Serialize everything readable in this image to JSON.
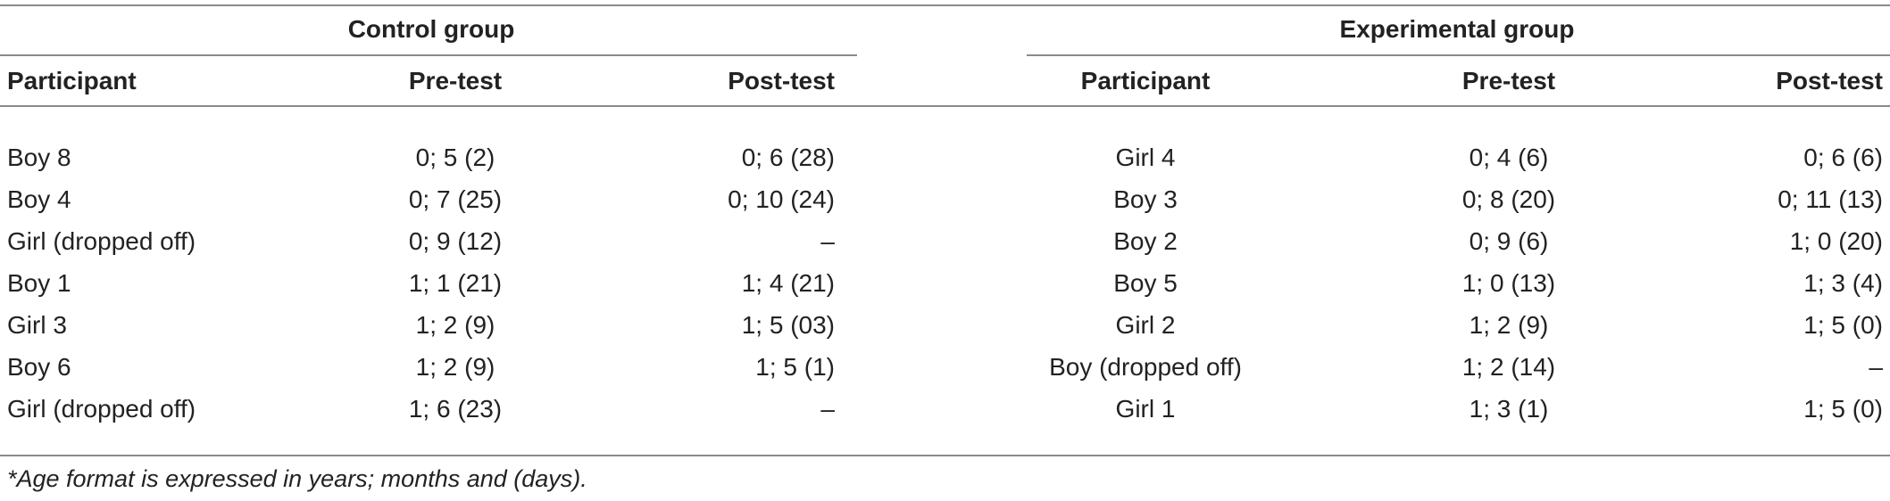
{
  "table": {
    "group_headers": {
      "control": "Control group",
      "experimental": "Experimental group"
    },
    "column_headers": {
      "control": [
        "Participant",
        "Pre-test",
        "Post-test"
      ],
      "experimental": [
        "Participant",
        "Pre-test",
        "Post-test"
      ]
    },
    "control_rows": [
      [
        "Boy 8",
        "0; 5 (2)",
        "0; 6 (28)"
      ],
      [
        "Boy 4",
        "0; 7 (25)",
        "0; 10 (24)"
      ],
      [
        "Girl (dropped off)",
        "0; 9 (12)",
        "–"
      ],
      [
        "Boy 1",
        "1; 1 (21)",
        "1; 4 (21)"
      ],
      [
        "Girl 3",
        "1; 2 (9)",
        "1; 5 (03)"
      ],
      [
        "Boy 6",
        "1; 2 (9)",
        "1; 5 (1)"
      ],
      [
        "Girl (dropped off)",
        "1; 6 (23)",
        "–"
      ]
    ],
    "experimental_rows": [
      [
        "Girl 4",
        "0; 4 (6)",
        "0; 6 (6)"
      ],
      [
        "Boy 3",
        "0; 8 (20)",
        "0; 11 (13)"
      ],
      [
        "Boy 2",
        "0; 9 (6)",
        "1; 0 (20)"
      ],
      [
        "Boy 5",
        "1; 0 (13)",
        "1; 3 (4)"
      ],
      [
        "Girl 2",
        "1; 2 (9)",
        "1; 5 (0)"
      ],
      [
        "Boy (dropped off)",
        "1; 2 (14)",
        "–"
      ],
      [
        "Girl 1",
        "1; 3 (1)",
        "1; 5 (0)"
      ]
    ],
    "footnote": "*Age format is expressed in years; months and (days)."
  }
}
